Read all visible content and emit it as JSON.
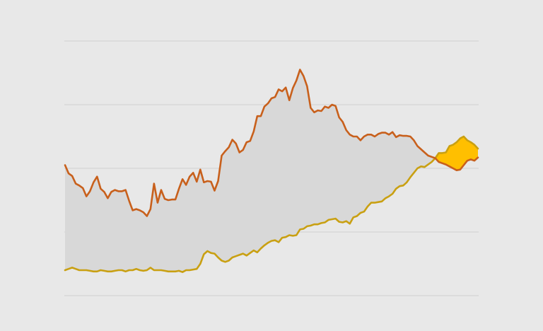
{
  "colors": {
    "background": "#e8e8e8",
    "grid": "#cfcfcf",
    "gap_fill": "#d8d8d8",
    "crossover_fill": "#ffbf00",
    "series_a": "#c8601c",
    "series_b": "#c9a012"
  },
  "chart_data": {
    "type": "line",
    "title": "",
    "xlabel": "",
    "ylabel": "",
    "grid": "horizontal",
    "legend": "none",
    "ylim": [
      0,
      4
    ],
    "gridlines": [
      0,
      1,
      2,
      3,
      4
    ],
    "x": [
      0,
      1,
      2,
      3,
      4,
      5,
      6,
      7,
      8,
      9,
      10,
      11,
      12,
      13,
      14,
      15,
      16,
      17,
      18,
      19,
      20,
      21,
      22,
      23,
      24,
      25,
      26,
      27,
      28,
      29,
      30,
      31,
      32,
      33,
      34,
      35,
      36,
      37,
      38,
      39,
      40,
      41,
      42,
      43,
      44,
      45,
      46,
      47,
      48,
      49,
      50,
      51,
      52,
      53,
      54,
      55,
      56,
      57,
      58,
      59,
      60,
      61,
      62,
      63,
      64,
      65,
      66,
      67,
      68,
      69,
      70,
      71,
      72,
      73,
      74,
      75,
      76,
      77,
      78,
      79,
      80,
      81,
      82,
      83,
      84,
      85,
      86,
      87,
      88,
      89,
      90,
      91,
      92,
      93,
      94,
      95,
      96,
      97,
      98,
      99,
      100,
      101,
      102,
      103,
      104,
      105,
      106,
      107,
      108,
      109,
      110,
      111,
      112,
      113,
      114,
      115,
      116
    ],
    "series": [
      {
        "values": [
          2.05,
          1.92,
          1.88,
          1.76,
          1.73,
          1.69,
          1.56,
          1.64,
          1.78,
          1.87,
          1.68,
          1.63,
          1.53,
          1.63,
          1.66,
          1.64,
          1.64,
          1.66,
          1.49,
          1.34,
          1.36,
          1.34,
          1.31,
          1.25,
          1.36,
          1.76,
          1.46,
          1.66,
          1.52,
          1.5,
          1.51,
          1.51,
          1.68,
          1.83,
          1.74,
          1.87,
          1.93,
          1.79,
          1.98,
          1.78,
          1.8,
          1.79,
          1.65,
          1.8,
          2.2,
          2.27,
          2.33,
          2.45,
          2.39,
          2.25,
          2.29,
          2.41,
          2.43,
          2.58,
          2.82,
          2.82,
          2.97,
          3.02,
          3.1,
          3.12,
          3.24,
          3.21,
          3.27,
          3.07,
          3.26,
          3.38,
          3.55,
          3.45,
          3.29,
          2.95,
          2.88,
          2.91,
          2.9,
          2.97,
          2.95,
          3.0,
          2.98,
          2.8,
          2.73,
          2.6,
          2.53,
          2.5,
          2.5,
          2.44,
          2.5,
          2.53,
          2.53,
          2.5,
          2.54,
          2.56,
          2.56,
          2.53,
          2.57,
          2.49,
          2.52,
          2.51,
          2.51,
          2.5,
          2.44,
          2.35,
          2.3,
          2.25,
          2.2,
          2.18,
          2.16,
          2.1,
          2.08,
          2.06,
          2.03,
          2.0,
          1.97,
          1.98,
          2.05,
          2.12,
          2.14,
          2.12,
          2.17
        ]
      },
      {
        "values": [
          0.4,
          0.42,
          0.44,
          0.42,
          0.4,
          0.4,
          0.4,
          0.39,
          0.38,
          0.38,
          0.4,
          0.39,
          0.38,
          0.38,
          0.39,
          0.4,
          0.4,
          0.38,
          0.4,
          0.4,
          0.42,
          0.4,
          0.39,
          0.4,
          0.44,
          0.4,
          0.4,
          0.4,
          0.39,
          0.38,
          0.38,
          0.38,
          0.39,
          0.37,
          0.4,
          0.4,
          0.41,
          0.42,
          0.5,
          0.65,
          0.7,
          0.67,
          0.66,
          0.6,
          0.55,
          0.53,
          0.55,
          0.6,
          0.62,
          0.64,
          0.66,
          0.63,
          0.67,
          0.71,
          0.68,
          0.74,
          0.79,
          0.83,
          0.86,
          0.87,
          0.84,
          0.91,
          0.92,
          0.95,
          0.94,
          0.95,
          1.04,
          1.05,
          1.09,
          1.1,
          1.12,
          1.12,
          1.14,
          1.15,
          1.19,
          1.2,
          1.21,
          1.16,
          1.15,
          1.17,
          1.13,
          1.23,
          1.25,
          1.3,
          1.32,
          1.4,
          1.46,
          1.46,
          1.47,
          1.48,
          1.53,
          1.56,
          1.6,
          1.68,
          1.72,
          1.73,
          1.78,
          1.86,
          1.93,
          2.0,
          2.03,
          2.02,
          2.06,
          2.1,
          2.16,
          2.24,
          2.24,
          2.25,
          2.35,
          2.37,
          2.41,
          2.47,
          2.5,
          2.44,
          2.41,
          2.37,
          2.31
        ]
      }
    ]
  }
}
